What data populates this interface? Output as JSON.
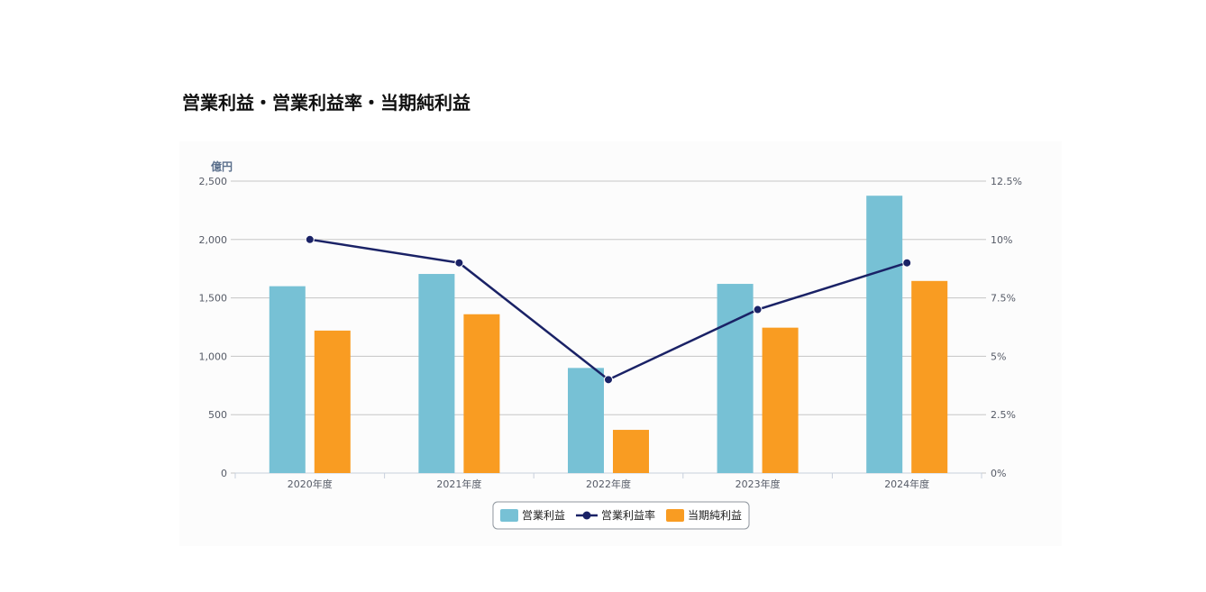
{
  "page": {
    "title": "営業利益・営業利益率・当期純利益"
  },
  "chart_data": {
    "type": "bar",
    "categories": [
      "2020年度",
      "2021年度",
      "2022年度",
      "2023年度",
      "2024年度"
    ],
    "ylabel": "億円",
    "ylim": [
      0,
      2500
    ],
    "y_ticks": [
      "0",
      "500",
      "1,000",
      "1,500",
      "2,000",
      "2,500"
    ],
    "y2lim": [
      0,
      12.5
    ],
    "y2_ticks": [
      "0%",
      "2.5%",
      "5%",
      "7.5%",
      "10%",
      "12.5%"
    ],
    "grid": true,
    "legend_position": "bottom",
    "series": [
      {
        "name": "営業利益",
        "type": "bar",
        "axis": "left",
        "color": "#77c1d5",
        "values": [
          1600,
          1705,
          900,
          1620,
          2375
        ]
      },
      {
        "name": "営業利益率",
        "type": "line",
        "axis": "right",
        "color": "#1a2266",
        "values": [
          10.0,
          9.0,
          4.0,
          7.0,
          9.0
        ]
      },
      {
        "name": "当期純利益",
        "type": "bar",
        "axis": "left",
        "color": "#f99c22",
        "values": [
          1220,
          1360,
          370,
          1245,
          1645
        ]
      }
    ]
  }
}
